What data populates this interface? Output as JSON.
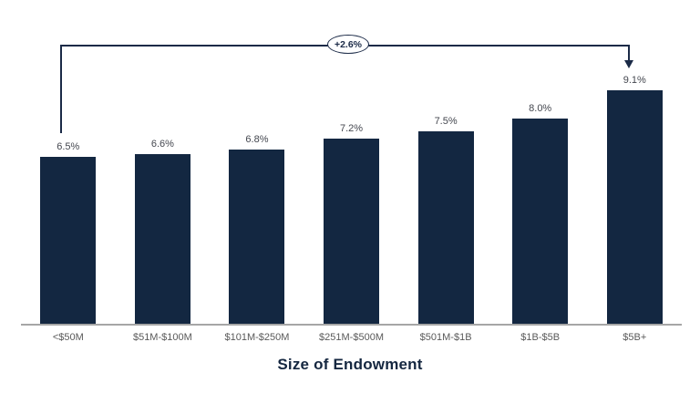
{
  "chart_data": {
    "type": "bar",
    "categories": [
      "<$50M",
      "$51M-$100M",
      "$101M-$250M",
      "$251M-$500M",
      "$501M-$1B",
      "$1B-$5B",
      "$5B+"
    ],
    "values": [
      6.5,
      6.6,
      6.8,
      7.2,
      7.5,
      8.0,
      9.1
    ],
    "value_labels": [
      "6.5%",
      "6.6%",
      "6.8%",
      "7.2%",
      "7.5%",
      "8.0%",
      "9.1%"
    ],
    "title": "",
    "xlabel": "Size of Endowment",
    "ylabel": "",
    "ylim": [
      0,
      10
    ],
    "grid": false,
    "legend": "none",
    "annotation": {
      "label": "+2.6%",
      "from_category": "<$50M",
      "to_category": "$5B+",
      "arrow_points_to": "$5B+"
    }
  },
  "colors": {
    "background": "#ffffff",
    "bar": "#132741",
    "value_label": "#44474f",
    "category_label": "#595959",
    "axis_line": "#a6a6a6",
    "annotation_line": "#1b2a47",
    "title": "#152740"
  }
}
